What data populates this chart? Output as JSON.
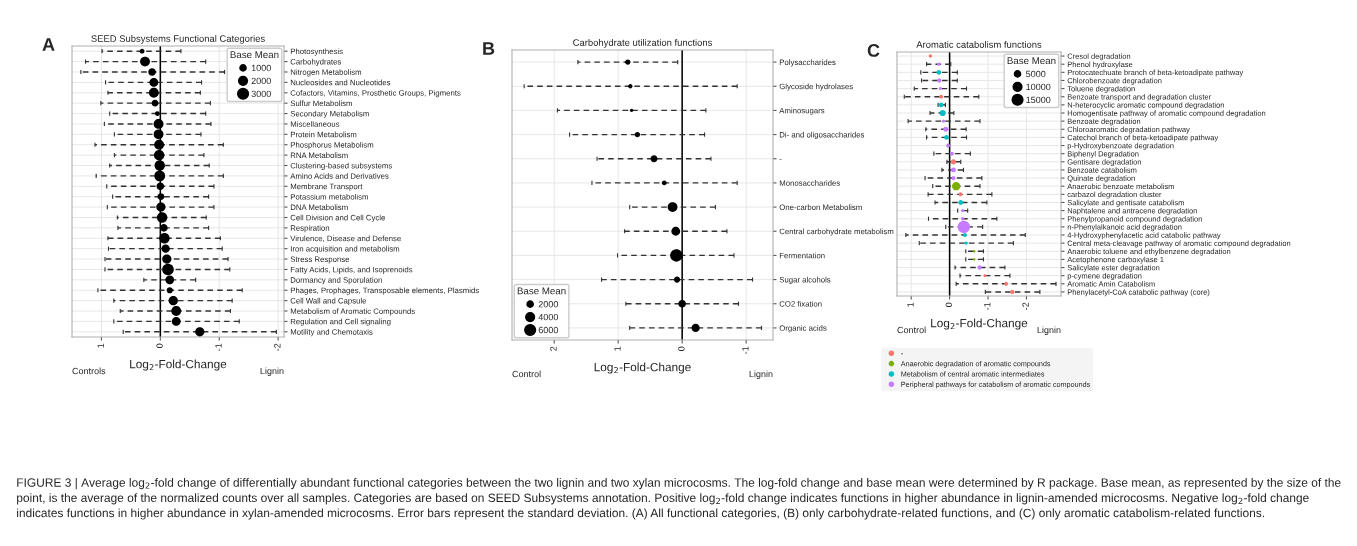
{
  "chart_data": [
    {
      "type": "bubble",
      "orientation": "horizontal",
      "title": "SEED Subsystems Functional Categories",
      "xlabel": "Log$_{2}$-Fold-Change",
      "legend_title": "Base Mean",
      "size_legend": [
        1000,
        2000,
        3000
      ],
      "grid": true,
      "marker": "circle",
      "line_style": "dashed",
      "xlim": [
        1.5,
        -2.1
      ],
      "xticks": [
        1,
        0,
        -1,
        -2
      ],
      "categories": [
        "Photosynthesis",
        "Carbohydrates",
        "Nitrogen Metabolism",
        "Nucleosides and Nucleotides",
        "Cofactors, Vitamins, Prosthetic Groups, Pigments",
        "Sulfur Metabolism",
        "Secondary Metabolism",
        "Miscellaneous",
        "Protein Metabolism",
        "Phosphorus Metabolism",
        "RNA Metabolism",
        "Clustering-based subsystems",
        "Amino Acids and Derivatives",
        "Membrane Transport",
        "Potassium metabolism",
        "DNA Metabolism",
        "Cell Division and Cell Cycle",
        "Respiration",
        "Virulence, Disease and Defense",
        "Iron acquisition and metabolism",
        "Stress Response",
        "Fatty Acids, Lipids, and Isoprenoids",
        "Dormancy and Sporulation",
        "Phages, Prophages, Transposable elements, Plasmids",
        "Cell Wall and Capsule",
        "Metabolism of Aromatic Compounds",
        "Regulation and Cell signaling",
        "Motility and Chemotaxis"
      ],
      "series": [
        {
          "color": "#000000",
          "values": [
            0.31,
            0.26,
            0.14,
            0.11,
            0.11,
            0.09,
            0.05,
            0.03,
            0.03,
            0.02,
            0.02,
            0.01,
            0.01,
            0.0,
            -0.01,
            -0.01,
            -0.03,
            -0.06,
            -0.07,
            -0.09,
            -0.11,
            -0.13,
            -0.16,
            -0.16,
            -0.22,
            -0.27,
            -0.27,
            -0.67
          ],
          "sizes": [
            600,
            2500,
            1500,
            2000,
            2500,
            1200,
            600,
            2500,
            2500,
            2500,
            2800,
            2800,
            3000,
            1500,
            1200,
            2200,
            2800,
            1500,
            2800,
            1800,
            2200,
            3500,
            2000,
            1000,
            2200,
            2500,
            2000,
            2200
          ],
          "errors": [
            [
              -0.35,
              0.99
            ],
            [
              -0.77,
              1.27
            ],
            [
              -1.09,
              1.35
            ],
            [
              -0.7,
              0.93
            ],
            [
              -0.68,
              0.89
            ],
            [
              -0.85,
              1.01
            ],
            [
              -0.77,
              0.86
            ],
            [
              -0.86,
              0.95
            ],
            [
              -0.69,
              0.78
            ],
            [
              -1.07,
              1.11
            ],
            [
              -0.74,
              0.78
            ],
            [
              -0.83,
              0.86
            ],
            [
              -1.07,
              1.09
            ],
            [
              -0.91,
              0.91
            ],
            [
              -0.82,
              0.81
            ],
            [
              -0.91,
              0.9
            ],
            [
              -0.78,
              0.73
            ],
            [
              -0.82,
              0.72
            ],
            [
              -1.02,
              0.89
            ],
            [
              -1.05,
              0.88
            ],
            [
              -1.15,
              0.94
            ],
            [
              -1.18,
              0.94
            ],
            [
              -0.6,
              0.28
            ],
            [
              -1.39,
              1.06
            ],
            [
              -1.22,
              0.79
            ],
            [
              -1.19,
              0.68
            ],
            [
              -1.34,
              0.79
            ],
            [
              -1.97,
              0.63
            ]
          ]
        }
      ],
      "ref_lines": [
        {
          "axis": "x",
          "value": 0,
          "color": "#000000"
        }
      ],
      "annotations": [
        "A",
        "Controls",
        "Lignin"
      ]
    },
    {
      "type": "bubble",
      "orientation": "horizontal",
      "title": "Carbohydrate utilization functions",
      "xlabel": "Log$_{2}$-Fold-Change",
      "legend_title": "Base Mean",
      "size_legend": [
        2000,
        4000,
        6000
      ],
      "grid": true,
      "marker": "circle",
      "line_style": "dashed",
      "xlim": [
        2.66,
        -1.42
      ],
      "xticks": [
        2,
        1,
        0,
        -1
      ],
      "categories": [
        "Polysaccharides",
        "Glycoside hydrolases",
        "Aminosugars",
        "Di- and oligosaccharides",
        "-",
        "Monosaccharides",
        "One-carbon Metabolism",
        "Central carbohydrate metabolism",
        "Fermentation",
        "Sugar alcohols",
        "CO2 fixation",
        "Organic acids"
      ],
      "series": [
        {
          "color": "#000000",
          "values": [
            0.85,
            0.81,
            0.79,
            0.7,
            0.44,
            0.28,
            0.15,
            0.1,
            0.09,
            0.08,
            0.0,
            -0.21
          ],
          "sizes": [
            1500,
            1000,
            600,
            1500,
            2500,
            1200,
            5000,
            4000,
            8000,
            2000,
            3000,
            3500
          ],
          "errors": [
            [
              0.07,
              1.63
            ],
            [
              -0.86,
              2.47
            ],
            [
              -0.37,
              1.95
            ],
            [
              -0.35,
              1.76
            ],
            [
              -0.45,
              1.33
            ],
            [
              -0.86,
              1.41
            ],
            [
              -0.52,
              0.82
            ],
            [
              -0.7,
              0.9
            ],
            [
              -0.81,
              1.01
            ],
            [
              -1.1,
              1.26
            ],
            [
              -0.88,
              0.88
            ],
            [
              -1.24,
              0.82
            ]
          ]
        }
      ],
      "ref_lines": [
        {
          "axis": "x",
          "value": 0,
          "color": "#000000"
        }
      ],
      "annotations": [
        "B",
        "Control",
        "Lignin"
      ]
    },
    {
      "type": "bubble",
      "orientation": "horizontal",
      "title": "Aromatic catabolism functions",
      "xlabel": "Log$_{2}$-Fold-Change",
      "legend_title": "Base Mean",
      "legend": "bottom",
      "size_legend": [
        5000,
        10000,
        15000
      ],
      "grid": true,
      "marker": "circle",
      "line_style": "dashed",
      "xlim": [
        1.37,
        -2.9
      ],
      "xticks": [
        1,
        0,
        -1,
        -2
      ],
      "categories": [
        "Cresol degradation",
        "Phenol hydroxylase",
        "Protocatechuate branch of beta-ketoadipate pathway",
        "Chlorobenzoate degradation",
        "Toluene degradation",
        "Benzoate transport and degradation cluster",
        "N-heterocyclic aromatic compound degradation",
        "Homogentisate pathway of aromatic compound degradation",
        "Benzoate degradation",
        "Chloroaromatic degradation pathway",
        "Catechol branch of beta-ketoadipate pathway",
        "p-Hydroxybenzoate degradation",
        "Biphenyl Degradation",
        "Gentisare degradation",
        "Benzoate catabolism",
        "Quinate degradation",
        "Anaerobic benzoate metabolism",
        "carbazol degradation cluster",
        "Salicylate and gentisate catabolism",
        "Naphtalene and antracene degradation",
        "Phenylpropanoid compound degradation",
        "n-Phenylalkanoic acid degradation",
        "4-Hydroxyphenylacetic acid catabolic pathway",
        "Central meta-cleavage pathway of aromatic compound degradation",
        "Anaerobic toluene and ethylbenzene degradation",
        "Acetophenone carboxylase 1",
        "Salicylate ester degradation",
        "p-cymene degradation",
        "Aromatic Amin Catabolism",
        "Phenylacetyl-CoA catabolic pathway (core)"
      ],
      "series": [
        {
          "name": "-",
          "color": "#F8766D",
          "values": [
            0.5,
            null,
            null,
            null,
            null,
            0.22,
            null,
            null,
            null,
            null,
            null,
            null,
            null,
            -0.1,
            null,
            null,
            null,
            -0.28,
            null,
            null,
            null,
            null,
            null,
            null,
            null,
            null,
            null,
            -0.92,
            -1.47,
            -1.63
          ],
          "sizes": [
            1500,
            null,
            null,
            null,
            null,
            2000,
            null,
            null,
            null,
            null,
            null,
            null,
            null,
            3500,
            null,
            null,
            null,
            2000,
            null,
            null,
            null,
            null,
            null,
            null,
            null,
            null,
            null,
            1200,
            2000,
            2500
          ],
          "errors": [
            null,
            null,
            null,
            null,
            null,
            [
              -0.76,
              1.18
            ],
            null,
            null,
            null,
            null,
            null,
            null,
            null,
            [
              -0.29,
              0.07
            ],
            null,
            null,
            null,
            [
              -1.1,
              0.56
            ],
            null,
            null,
            null,
            null,
            null,
            null,
            null,
            null,
            null,
            [
              -1.57,
              -0.27
            ],
            [
              -2.77,
              -0.17
            ],
            [
              -2.35,
              -0.93
            ]
          ]
        },
        {
          "name": "Anaerobic degradation of aromatic compounds",
          "color": "#7CAE00",
          "values": [
            null,
            null,
            null,
            null,
            null,
            null,
            null,
            null,
            null,
            null,
            null,
            null,
            null,
            null,
            null,
            null,
            -0.17,
            null,
            null,
            null,
            null,
            null,
            null,
            null,
            -0.64,
            -0.64,
            null,
            null,
            null,
            null
          ],
          "sizes": [
            null,
            null,
            null,
            null,
            null,
            null,
            null,
            null,
            null,
            null,
            null,
            null,
            null,
            null,
            null,
            null,
            9000,
            null,
            null,
            null,
            null,
            null,
            null,
            null,
            800,
            800,
            null,
            null,
            null,
            null
          ],
          "errors": [
            null,
            null,
            null,
            null,
            null,
            null,
            null,
            null,
            null,
            null,
            null,
            null,
            null,
            null,
            null,
            null,
            [
              -0.79,
              0.44
            ],
            null,
            null,
            null,
            null,
            null,
            null,
            null,
            [
              -0.88,
              -0.42
            ],
            [
              -0.88,
              -0.42
            ],
            null,
            null,
            null,
            null
          ]
        },
        {
          "name": "Metabolism of central aromatic intermediates",
          "color": "#00BFC4",
          "values": [
            null,
            null,
            0.28,
            null,
            null,
            null,
            0.22,
            0.18,
            null,
            null,
            0.08,
            null,
            null,
            null,
            null,
            null,
            null,
            null,
            -0.29,
            null,
            null,
            null,
            -0.4,
            -0.43,
            null,
            null,
            null,
            null,
            null,
            null
          ],
          "sizes": [
            null,
            null,
            3000,
            null,
            null,
            null,
            3000,
            5000,
            null,
            null,
            3000,
            null,
            null,
            null,
            null,
            null,
            null,
            null,
            3000,
            null,
            null,
            null,
            2000,
            1500,
            null,
            null,
            null,
            null,
            null,
            null
          ],
          "errors": [
            null,
            null,
            [
              -0.2,
              0.75
            ],
            null,
            null,
            null,
            [
              0.11,
              0.3
            ],
            [
              -0.11,
              0.51
            ],
            null,
            null,
            [
              -0.44,
              0.6
            ],
            null,
            null,
            null,
            null,
            null,
            null,
            null,
            [
              -0.97,
              0.38
            ],
            null,
            null,
            null,
            [
              -1.97,
              1.14
            ],
            [
              -1.66,
              0.79
            ],
            null,
            null,
            null,
            null,
            null,
            null
          ]
        },
        {
          "name": "Peripheral pathways for catabolism of aromatic compounds",
          "color": "#C77CFF",
          "values": [
            null,
            0.28,
            null,
            0.27,
            0.24,
            null,
            null,
            null,
            0.16,
            0.1,
            null,
            0.04,
            -0.06,
            null,
            -0.1,
            -0.1,
            null,
            null,
            null,
            -0.34,
            -0.34,
            -0.37,
            null,
            null,
            null,
            null,
            -0.78,
            null,
            null,
            null
          ],
          "sizes": [
            null,
            1500,
            null,
            2500,
            1200,
            null,
            null,
            null,
            1500,
            3500,
            null,
            2000,
            2000,
            null,
            3000,
            2000,
            null,
            null,
            null,
            1500,
            1500,
            20000,
            null,
            null,
            null,
            null,
            2500,
            null,
            null,
            null
          ],
          "errors": [
            null,
            [
              -0.03,
              0.6
            ],
            null,
            [
              -0.2,
              0.73
            ],
            [
              -0.44,
              0.92
            ],
            null,
            null,
            null,
            [
              -0.79,
              1.08
            ],
            [
              -0.43,
              0.62
            ],
            null,
            null,
            [
              -0.54,
              0.41
            ],
            null,
            [
              -0.36,
              0.2
            ],
            [
              -0.84,
              0.64
            ],
            null,
            null,
            null,
            [
              -0.47,
              -0.21
            ],
            [
              -1.23,
              0.55
            ],
            [
              -0.86,
              0.1
            ],
            null,
            null,
            null,
            null,
            [
              -1.44,
              -0.14
            ],
            null,
            null,
            null
          ]
        }
      ],
      "ref_lines": [
        {
          "axis": "x",
          "value": 0,
          "color": "#000000"
        }
      ],
      "annotations": [
        "C",
        "Control",
        "Lignin",
        "FIGURE 3 | Average log$_{2}$-fold change of differentially abundant functional categories between the two lignin and two xylan microcosms. The log-fold change and base mean were determined by R package. Base mean, as represented by the size of the point, is the average of the normalized counts over all samples. Categories are based on SEED Subsystems annotation. Positive log$_{2}$-fold change indicates functions in higher abundance in lignin-amended microcosms. Negative log$_{2}$-fold change indicates functions in higher abundance in xylan-amended microcosms. Error bars represent the standard deviation. (A) All functional categories, (B) only carbohydrate-related functions, and (C) only aromatic catabolism-related functions."
      ]
    }
  ]
}
